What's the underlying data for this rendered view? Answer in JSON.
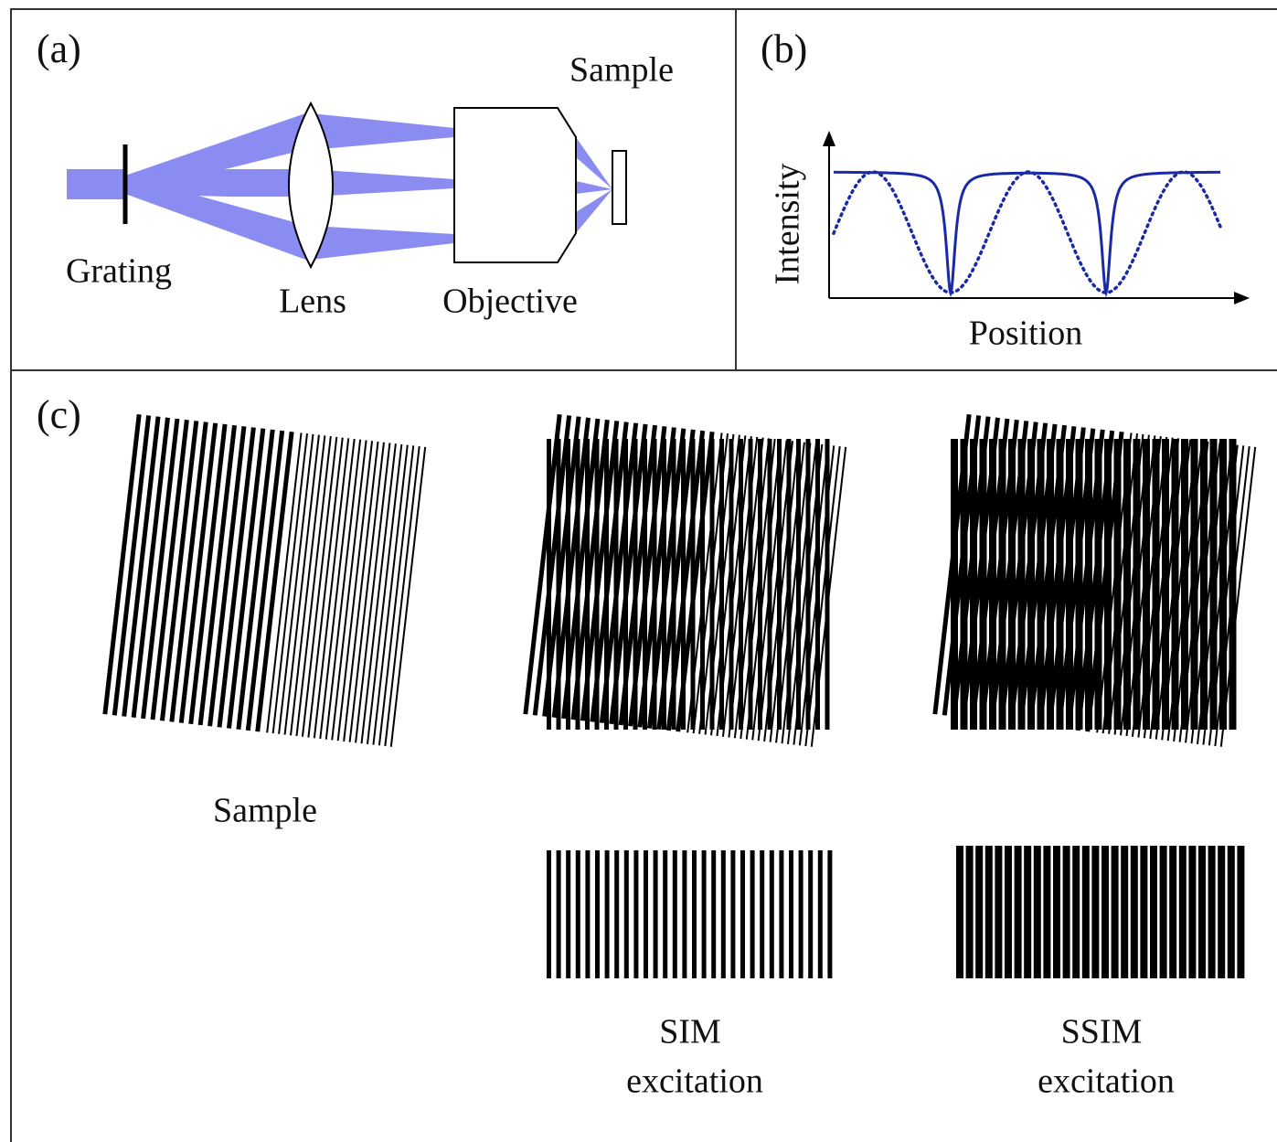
{
  "panel_a": {
    "label": "(a)",
    "grating": "Grating",
    "lens": "Lens",
    "objective": "Objective",
    "sample": "Sample"
  },
  "panel_b": {
    "label": "(b)",
    "y_axis": "Intensity",
    "x_axis": "Position"
  },
  "panel_c": {
    "label": "(c)",
    "sample": "Sample",
    "sim": [
      "SIM",
      "excitation"
    ],
    "ssim": [
      "SSIM",
      "excitation"
    ]
  }
}
